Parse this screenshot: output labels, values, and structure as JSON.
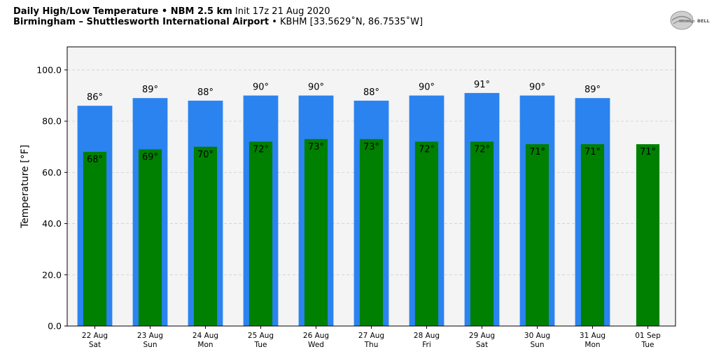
{
  "header": {
    "title_bold": "Daily High/Low Temperature • NBM 2.5 km",
    "title_init": "Init 17z 21 Aug 2020",
    "location_bold": "Birmingham – Shuttlesworth International Airport",
    "location_rest": "• KBHM [33.5629˚N, 86.7535˚W]"
  },
  "logo": {
    "text_left": "Weather",
    "text_right": "BELL",
    "icon": "weatherbell-logo"
  },
  "colors": {
    "high": "#2b83f0",
    "low": "#008000",
    "plot_bg": "#f4f4f4"
  },
  "chart_data": {
    "type": "bar",
    "title": "Daily High/Low Temperature",
    "ylabel": "Temperature [°F]",
    "ylim": [
      0,
      109
    ],
    "yticks": [
      "0.0",
      "20.0",
      "40.0",
      "60.0",
      "80.0",
      "100.0"
    ],
    "ytick_values": [
      0,
      20,
      40,
      60,
      80,
      100
    ],
    "grid": true,
    "categories": [
      "22 Aug",
      "23 Aug",
      "24 Aug",
      "25 Aug",
      "26 Aug",
      "27 Aug",
      "28 Aug",
      "29 Aug",
      "30 Aug",
      "31 Aug",
      "01 Sep"
    ],
    "weekdays": [
      "Sat",
      "Sun",
      "Mon",
      "Tue",
      "Wed",
      "Thu",
      "Fri",
      "Sat",
      "Sun",
      "Mon",
      "Tue"
    ],
    "series": [
      {
        "name": "High",
        "values": [
          86,
          89,
          88,
          90,
          90,
          88,
          90,
          91,
          90,
          89,
          null
        ],
        "labels": [
          "86°",
          "89°",
          "88°",
          "90°",
          "90°",
          "88°",
          "90°",
          "91°",
          "90°",
          "89°",
          ""
        ]
      },
      {
        "name": "Low",
        "values": [
          68,
          69,
          70,
          72,
          73,
          73,
          72,
          72,
          71,
          71,
          71
        ],
        "labels": [
          "68°",
          "69°",
          "70°",
          "72°",
          "73°",
          "73°",
          "72°",
          "72°",
          "71°",
          "71°",
          "71°"
        ]
      }
    ]
  }
}
